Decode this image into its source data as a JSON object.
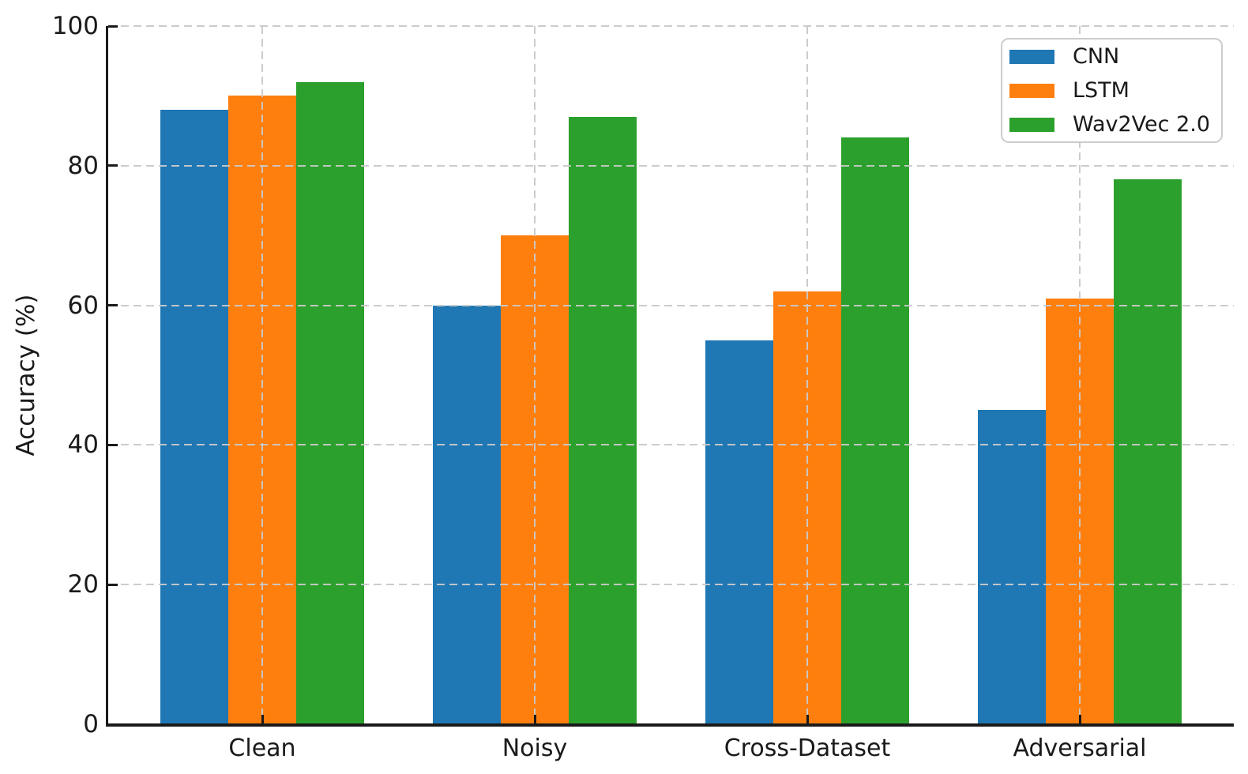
{
  "chart_data": {
    "type": "bar",
    "title": "",
    "xlabel": "",
    "ylabel": "Accuracy (%)",
    "categories": [
      "Clean",
      "Noisy",
      "Cross-Dataset",
      "Adversarial"
    ],
    "series": [
      {
        "name": "CNN",
        "color": "#1f77b4",
        "values": [
          88,
          60,
          55,
          45
        ]
      },
      {
        "name": "LSTM",
        "color": "#ff7f0e",
        "values": [
          90,
          70,
          62,
          61
        ]
      },
      {
        "name": "Wav2Vec 2.0",
        "color": "#2ca02c",
        "values": [
          92,
          87,
          84,
          78
        ]
      }
    ],
    "ylim": [
      0,
      100
    ],
    "yticks": [
      0,
      20,
      40,
      60,
      80,
      100
    ],
    "grid": true,
    "grid_style": "dashed",
    "grid_above_bars": true,
    "legend_position": "upper right",
    "colors": {
      "text": "#1a1a1a",
      "grid": "#c9c9c9",
      "spine": "#1a1a1a",
      "background": "#ffffff",
      "legend_border": "#cccccc"
    }
  }
}
